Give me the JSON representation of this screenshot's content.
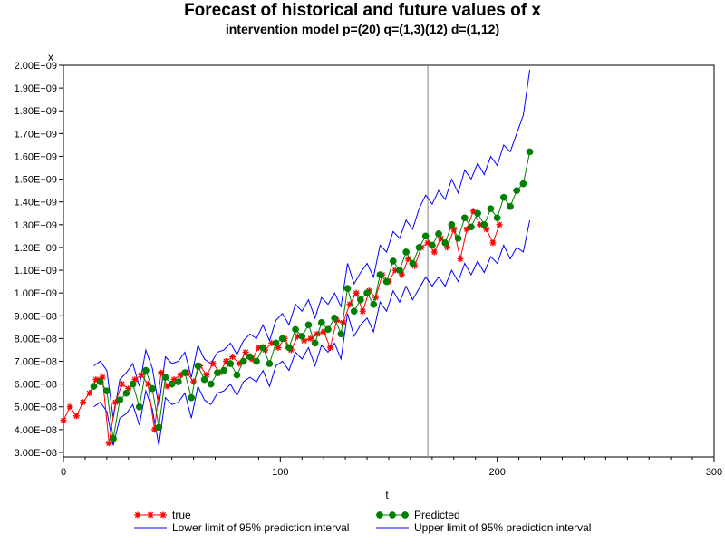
{
  "chart_data": {
    "type": "line",
    "title": "Forecast of historical and future values of x",
    "subtitle": "intervention model p=(20)  q=(1,3)(12) d=(1,12)",
    "xlabel": "t",
    "ylabel": "x",
    "xlim": [
      0,
      300
    ],
    "ylim": [
      280000000,
      2000000000
    ],
    "x_ticks": [
      0,
      100,
      200,
      300
    ],
    "y_tick_values": [
      300000000,
      400000000,
      500000000,
      600000000,
      700000000,
      800000000,
      900000000,
      1000000000,
      1100000000,
      1200000000,
      1300000000,
      1400000000,
      1500000000,
      1600000000,
      1700000000,
      1800000000,
      1900000000,
      2000000000
    ],
    "y_tick_labels": [
      "3.00E+08",
      "4.00E+08",
      "5.00E+08",
      "6.00E+08",
      "7.00E+08",
      "8.00E+08",
      "9.00E+08",
      "1.00E+09",
      "1.10E+09",
      "1.20E+09",
      "1.30E+09",
      "1.40E+09",
      "1.50E+09",
      "1.60E+09",
      "1.70E+09",
      "1.80E+09",
      "1.90E+09",
      "2.00E+09"
    ],
    "forecast_start_line": 168,
    "grid": false,
    "legend_position": "bottom",
    "series": [
      {
        "name": "true",
        "color": "#ff0000",
        "marker": "star",
        "x": [
          0,
          3,
          6,
          9,
          12,
          15,
          18,
          21,
          24,
          27,
          30,
          33,
          36,
          39,
          42,
          45,
          48,
          51,
          54,
          57,
          60,
          63,
          66,
          69,
          72,
          75,
          78,
          81,
          84,
          87,
          90,
          93,
          96,
          99,
          102,
          105,
          108,
          111,
          114,
          117,
          120,
          123,
          126,
          129,
          132,
          135,
          138,
          141,
          144,
          147,
          150,
          153,
          156,
          159,
          162,
          165,
          168,
          171,
          174,
          177,
          180,
          183,
          186,
          189,
          192,
          195,
          198,
          201
        ],
        "y": [
          440000000,
          500000000,
          460000000,
          520000000,
          560000000,
          620000000,
          630000000,
          340000000,
          520000000,
          600000000,
          580000000,
          620000000,
          640000000,
          600000000,
          400000000,
          650000000,
          590000000,
          620000000,
          640000000,
          650000000,
          610000000,
          680000000,
          640000000,
          690000000,
          650000000,
          700000000,
          720000000,
          690000000,
          740000000,
          710000000,
          760000000,
          750000000,
          780000000,
          760000000,
          800000000,
          750000000,
          810000000,
          790000000,
          800000000,
          820000000,
          830000000,
          760000000,
          880000000,
          870000000,
          950000000,
          1000000000,
          920000000,
          1010000000,
          980000000,
          1080000000,
          1050000000,
          1100000000,
          1080000000,
          1150000000,
          1120000000,
          1200000000,
          1220000000,
          1180000000,
          1240000000,
          1200000000,
          1280000000,
          1150000000,
          1280000000,
          1360000000,
          1300000000,
          1280000000,
          1220000000,
          1300000000
        ]
      },
      {
        "name": "Predicted",
        "color": "#008000",
        "marker": "circle",
        "x": [
          14,
          17,
          20,
          23,
          26,
          29,
          32,
          35,
          38,
          41,
          44,
          47,
          50,
          53,
          56,
          59,
          62,
          65,
          68,
          71,
          74,
          77,
          80,
          83,
          86,
          89,
          92,
          95,
          98,
          101,
          104,
          107,
          110,
          113,
          116,
          119,
          122,
          125,
          128,
          131,
          134,
          137,
          140,
          143,
          146,
          149,
          152,
          155,
          158,
          161,
          164,
          167,
          170,
          173,
          176,
          179,
          182,
          185,
          188,
          191,
          194,
          197,
          200,
          203,
          206,
          209,
          212,
          215
        ],
        "y": [
          590000000,
          610000000,
          570000000,
          360000000,
          530000000,
          560000000,
          600000000,
          500000000,
          660000000,
          580000000,
          410000000,
          630000000,
          600000000,
          610000000,
          650000000,
          540000000,
          680000000,
          620000000,
          600000000,
          650000000,
          660000000,
          690000000,
          640000000,
          700000000,
          720000000,
          700000000,
          760000000,
          690000000,
          780000000,
          800000000,
          760000000,
          840000000,
          810000000,
          860000000,
          780000000,
          870000000,
          840000000,
          890000000,
          820000000,
          1020000000,
          920000000,
          970000000,
          1000000000,
          950000000,
          1080000000,
          1050000000,
          1140000000,
          1100000000,
          1180000000,
          1130000000,
          1200000000,
          1250000000,
          1210000000,
          1260000000,
          1220000000,
          1300000000,
          1240000000,
          1330000000,
          1290000000,
          1350000000,
          1300000000,
          1370000000,
          1330000000,
          1420000000,
          1380000000,
          1450000000,
          1480000000,
          1620000000
        ]
      },
      {
        "name": "Lower limit of 95% prediction interval",
        "color": "#0000ff",
        "marker": "none",
        "x": [
          14,
          17,
          20,
          23,
          26,
          29,
          32,
          35,
          38,
          41,
          44,
          47,
          50,
          53,
          56,
          59,
          62,
          65,
          68,
          71,
          74,
          77,
          80,
          83,
          86,
          89,
          92,
          95,
          98,
          101,
          104,
          107,
          110,
          113,
          116,
          119,
          122,
          125,
          128,
          131,
          134,
          137,
          140,
          143,
          146,
          149,
          152,
          155,
          158,
          161,
          164,
          167,
          170,
          173,
          176,
          179,
          182,
          185,
          188,
          191,
          194,
          197,
          200,
          203,
          206,
          209,
          212,
          215
        ],
        "y": [
          500000000,
          520000000,
          480000000,
          330000000,
          450000000,
          470000000,
          510000000,
          420000000,
          570000000,
          490000000,
          330000000,
          540000000,
          510000000,
          520000000,
          560000000,
          450000000,
          590000000,
          530000000,
          510000000,
          560000000,
          570000000,
          600000000,
          550000000,
          610000000,
          630000000,
          610000000,
          660000000,
          590000000,
          680000000,
          700000000,
          660000000,
          740000000,
          710000000,
          760000000,
          680000000,
          770000000,
          740000000,
          780000000,
          710000000,
          910000000,
          810000000,
          860000000,
          890000000,
          830000000,
          960000000,
          920000000,
          1010000000,
          960000000,
          1030000000,
          970000000,
          1020000000,
          1070000000,
          1030000000,
          1070000000,
          1030000000,
          1100000000,
          1050000000,
          1130000000,
          1080000000,
          1140000000,
          1090000000,
          1160000000,
          1130000000,
          1210000000,
          1150000000,
          1200000000,
          1180000000,
          1320000000
        ]
      },
      {
        "name": "Upper limit of 95% prediction interval",
        "color": "#0000ff",
        "marker": "none",
        "x": [
          14,
          17,
          20,
          23,
          26,
          29,
          32,
          35,
          38,
          41,
          44,
          47,
          50,
          53,
          56,
          59,
          62,
          65,
          68,
          71,
          74,
          77,
          80,
          83,
          86,
          89,
          92,
          95,
          98,
          101,
          104,
          107,
          110,
          113,
          116,
          119,
          122,
          125,
          128,
          131,
          134,
          137,
          140,
          143,
          146,
          149,
          152,
          155,
          158,
          161,
          164,
          167,
          170,
          173,
          176,
          179,
          182,
          185,
          188,
          191,
          194,
          197,
          200,
          203,
          206,
          209,
          212,
          215
        ],
        "y": [
          680000000,
          700000000,
          660000000,
          450000000,
          620000000,
          650000000,
          690000000,
          590000000,
          750000000,
          670000000,
          500000000,
          720000000,
          690000000,
          700000000,
          740000000,
          630000000,
          770000000,
          710000000,
          690000000,
          740000000,
          750000000,
          780000000,
          730000000,
          790000000,
          820000000,
          800000000,
          860000000,
          790000000,
          880000000,
          910000000,
          860000000,
          950000000,
          920000000,
          970000000,
          890000000,
          980000000,
          950000000,
          1000000000,
          940000000,
          1130000000,
          1040000000,
          1090000000,
          1130000000,
          1070000000,
          1210000000,
          1180000000,
          1270000000,
          1240000000,
          1320000000,
          1280000000,
          1370000000,
          1430000000,
          1390000000,
          1450000000,
          1410000000,
          1500000000,
          1440000000,
          1540000000,
          1500000000,
          1570000000,
          1520000000,
          1600000000,
          1560000000,
          1650000000,
          1620000000,
          1700000000,
          1780000000,
          1980000000
        ]
      }
    ]
  }
}
